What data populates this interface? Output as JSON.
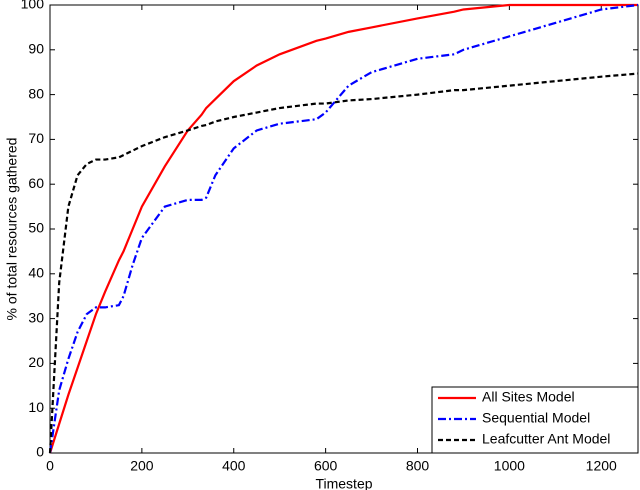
{
  "chart_data": {
    "type": "line",
    "xlabel": "Timestep",
    "ylabel": "% of total resources gathered",
    "x": [
      0,
      20,
      40,
      60,
      80,
      100,
      120,
      150,
      160,
      180,
      200,
      250,
      300,
      330,
      340,
      360,
      400,
      450,
      500,
      580,
      600,
      650,
      700,
      800,
      880,
      900,
      1000,
      1100,
      1200,
      1280
    ],
    "series": [
      {
        "name": "All Sites Model",
        "color": "#ff0000",
        "linestyle": "solid",
        "values": [
          0,
          6.5,
          13,
          19,
          25,
          31,
          36,
          43,
          45,
          50,
          55,
          64,
          72,
          75.5,
          77,
          79,
          83,
          86.5,
          89,
          92,
          92.5,
          94,
          95,
          97,
          98.5,
          99,
          100,
          100,
          100,
          100
        ]
      },
      {
        "name": "Sequential Model",
        "color": "#0000ff",
        "linestyle": "dashdot",
        "values": [
          0,
          14,
          21,
          27,
          31,
          32.5,
          32.5,
          33,
          35,
          42,
          48,
          55,
          56.5,
          56.5,
          57,
          62,
          68,
          72,
          73.5,
          74.5,
          76,
          82,
          85,
          88,
          89,
          90,
          93,
          96,
          99,
          100
        ]
      },
      {
        "name": "Leafcutter Ant Model",
        "color": "#000000",
        "linestyle": "dashed",
        "values": [
          0,
          38,
          55,
          62,
          64.5,
          65.5,
          65.5,
          66,
          66.5,
          67.5,
          68.5,
          70.5,
          72,
          73,
          73.2,
          74,
          75,
          76,
          77,
          78,
          78,
          78.7,
          79,
          80,
          81,
          81,
          82,
          83,
          84,
          84.7
        ]
      }
    ],
    "xlim": [
      0,
      1280
    ],
    "xticks": [
      0,
      200,
      400,
      600,
      800,
      1000,
      1200
    ],
    "ylim": [
      0,
      100
    ],
    "yticks": [
      0,
      10,
      20,
      30,
      40,
      50,
      60,
      70,
      80,
      90,
      100
    ],
    "legend": "lower right"
  }
}
